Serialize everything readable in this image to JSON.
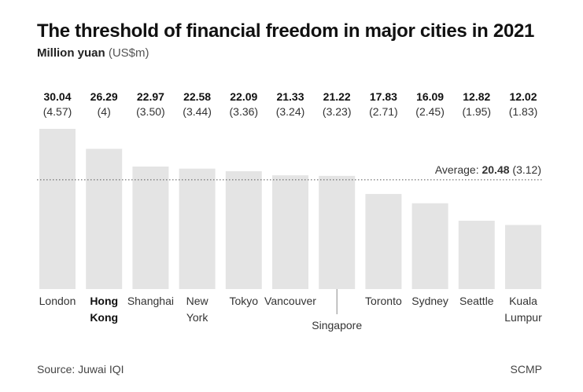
{
  "title": "The threshold of financial freedom in major cities in 2021",
  "subtitle": {
    "main": "Million yuan",
    "unit": "(US$m)"
  },
  "source": "Source: Juwai IQI",
  "credit": "SCMP",
  "colors": {
    "bar": "#e4e4e4",
    "text": "#222222",
    "line": "#555555"
  },
  "chart_data": {
    "type": "bar",
    "categories": [
      "London",
      "Hong Kong",
      "Shanghai",
      "New York",
      "Tokyo",
      "Vancouver",
      "Singapore",
      "Toronto",
      "Sydney",
      "Seattle",
      "Kuala Lumpur"
    ],
    "category_lines": [
      [
        "London"
      ],
      [
        "Hong",
        "Kong"
      ],
      [
        "Shanghai"
      ],
      [
        "New",
        "York"
      ],
      [
        "Tokyo"
      ],
      [
        "Vancouver"
      ],
      [
        "Singapore"
      ],
      [
        "Toronto"
      ],
      [
        "Sydney"
      ],
      [
        "Seattle"
      ],
      [
        "Kuala",
        "Lumpur"
      ]
    ],
    "highlight": "Hong Kong",
    "values": [
      30.04,
      26.29,
      22.97,
      22.58,
      22.09,
      21.33,
      21.22,
      17.83,
      16.09,
      12.82,
      12.02
    ],
    "value_labels": [
      "30.04",
      "26.29",
      "22.97",
      "22.58",
      "22.09",
      "21.33",
      "21.22",
      "17.83",
      "16.09",
      "12.82",
      "12.02"
    ],
    "usd_labels": [
      "(4.57)",
      "(4)",
      "(3.50)",
      "(3.44)",
      "(3.36)",
      "(3.24)",
      "(3.23)",
      "(2.71)",
      "(2.45)",
      "(1.95)",
      "(1.83)"
    ],
    "average": {
      "value": 20.48,
      "label_prefix": "Average:",
      "value_label": "20.48",
      "usd_label": "(3.12)"
    },
    "ylim": [
      0,
      30.04
    ],
    "grid": false
  }
}
